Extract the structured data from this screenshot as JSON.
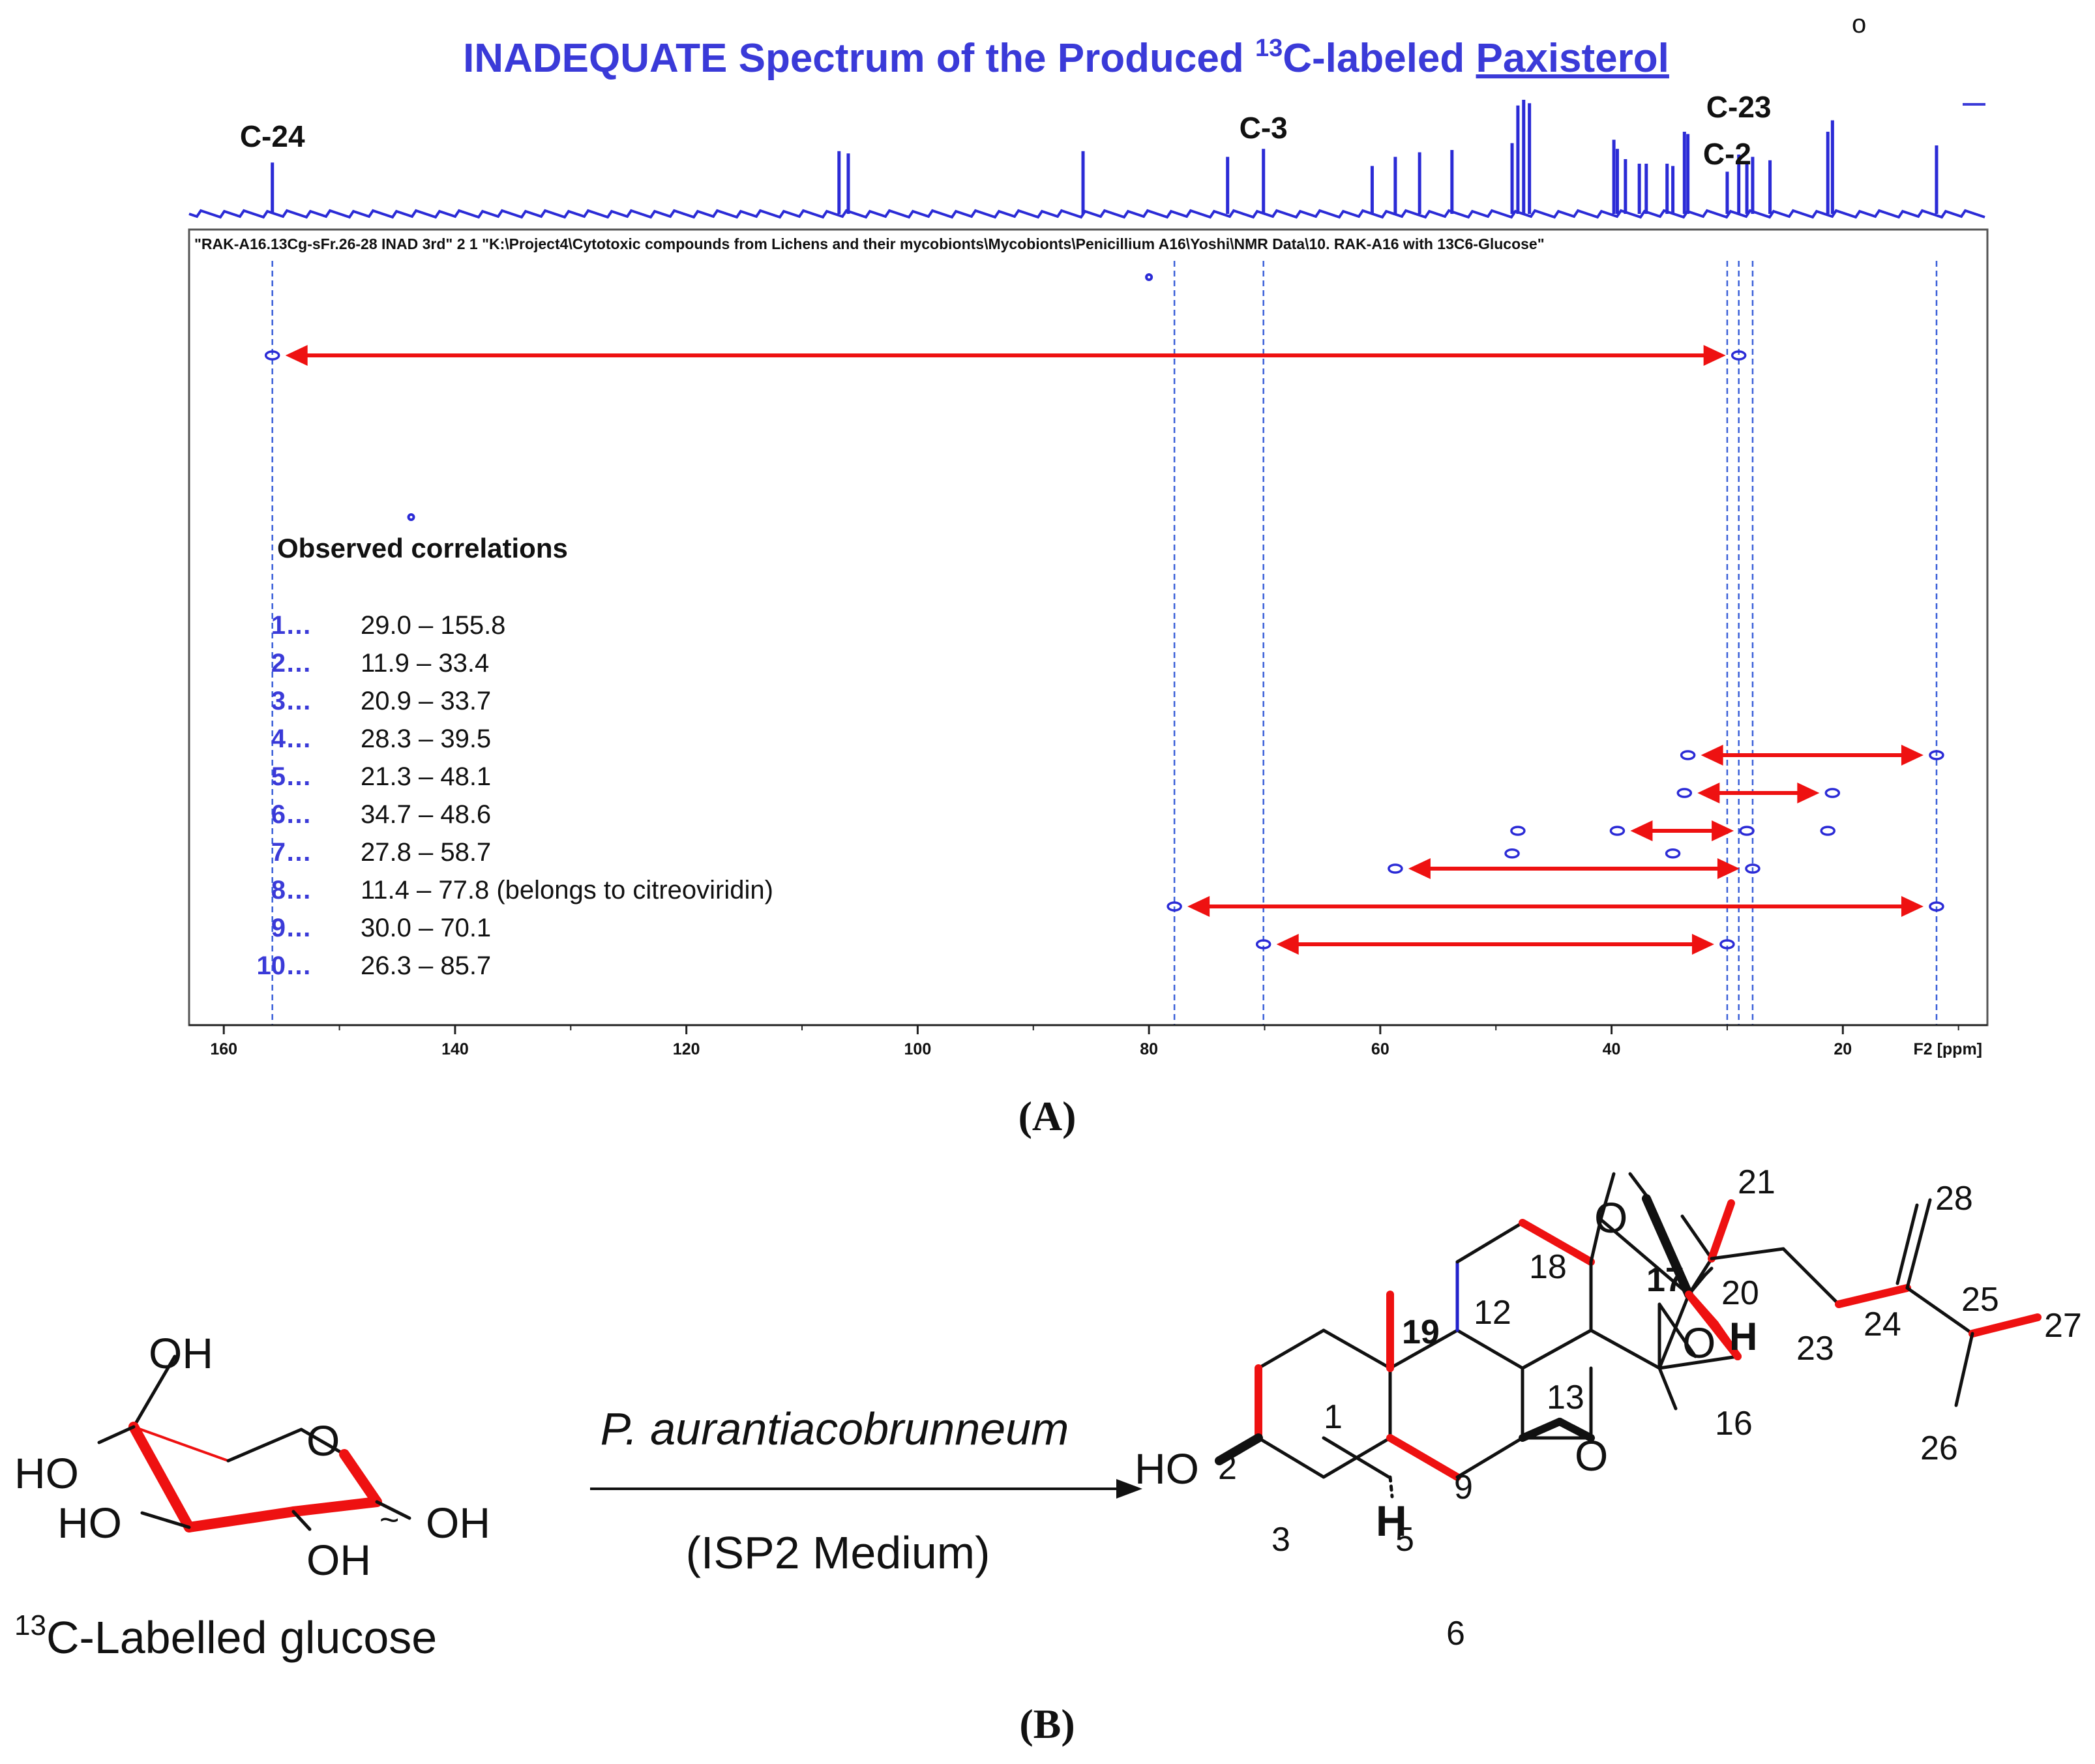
{
  "chart_data": {
    "type": "scatter",
    "title": "INADEQUATE Spectrum of the Produced",
    "title_isotope": "13",
    "title_rest": "C-labeled",
    "title_compound": "Paxisterol",
    "corner_mark": "o",
    "file_header": "\"RAK-A16.13Cg-sFr.26-28 INAD 3rd\"  2  1  \"K:\\Project4\\Cytotoxic compounds from Lichens and their mycobionts\\Mycobionts\\Penicillium A16\\Yoshi\\NMR Data\\10. RAK-A16 with 13C6-Glucose\"",
    "xlabel": "F2 [ppm]",
    "xlim": [
      163,
      7.5
    ],
    "x_ticks": [
      160,
      140,
      120,
      100,
      80,
      60,
      40,
      20
    ],
    "x_tick_labels": [
      "160",
      "140",
      "120",
      "100",
      "80",
      "60",
      "40",
      "20"
    ],
    "peak_labels": [
      {
        "label": "C-24",
        "ppm": 155.8
      },
      {
        "label": "C-3",
        "ppm": 70.1
      },
      {
        "label": "C-23",
        "ppm": 29.0
      },
      {
        "label": "C-2",
        "ppm": 30.0
      }
    ],
    "spectrum_1d": [
      {
        "ppm": 155.8,
        "h": 0.45
      },
      {
        "ppm": 106.8,
        "h": 0.55
      },
      {
        "ppm": 106.0,
        "h": 0.53
      },
      {
        "ppm": 85.7,
        "h": 0.55
      },
      {
        "ppm": 73.2,
        "h": 0.5
      },
      {
        "ppm": 70.1,
        "h": 0.57
      },
      {
        "ppm": 60.7,
        "h": 0.42
      },
      {
        "ppm": 58.7,
        "h": 0.5
      },
      {
        "ppm": 56.6,
        "h": 0.54
      },
      {
        "ppm": 53.8,
        "h": 0.56
      },
      {
        "ppm": 48.6,
        "h": 0.62
      },
      {
        "ppm": 48.1,
        "h": 0.95
      },
      {
        "ppm": 47.6,
        "h": 1.0
      },
      {
        "ppm": 47.1,
        "h": 0.97
      },
      {
        "ppm": 39.8,
        "h": 0.65
      },
      {
        "ppm": 39.5,
        "h": 0.57
      },
      {
        "ppm": 38.8,
        "h": 0.48
      },
      {
        "ppm": 37.6,
        "h": 0.44
      },
      {
        "ppm": 37.0,
        "h": 0.44
      },
      {
        "ppm": 35.2,
        "h": 0.44
      },
      {
        "ppm": 34.7,
        "h": 0.42
      },
      {
        "ppm": 33.7,
        "h": 0.72
      },
      {
        "ppm": 33.4,
        "h": 0.7
      },
      {
        "ppm": 30.0,
        "h": 0.37
      },
      {
        "ppm": 29.0,
        "h": 0.52
      },
      {
        "ppm": 28.3,
        "h": 0.46
      },
      {
        "ppm": 27.8,
        "h": 0.5
      },
      {
        "ppm": 26.3,
        "h": 0.47
      },
      {
        "ppm": 21.3,
        "h": 0.72
      },
      {
        "ppm": 20.9,
        "h": 0.82
      },
      {
        "ppm": 11.9,
        "h": 0.6
      }
    ],
    "guide_lines_ppm": [
      155.8,
      77.8,
      70.1,
      30.0,
      29.0,
      27.8,
      11.9
    ],
    "cross_peaks": [
      {
        "x": 155.8,
        "row": 1
      },
      {
        "x": 29.0,
        "row": 1
      },
      {
        "x": 33.4,
        "row": 2
      },
      {
        "x": 11.9,
        "row": 2
      },
      {
        "x": 33.7,
        "row": 3
      },
      {
        "x": 20.9,
        "row": 3
      },
      {
        "x": 39.5,
        "row": 4
      },
      {
        "x": 28.3,
        "row": 4
      },
      {
        "x": 48.1,
        "row": 4
      },
      {
        "x": 21.3,
        "row": 4
      },
      {
        "x": 58.7,
        "row": 5
      },
      {
        "x": 27.8,
        "row": 5
      },
      {
        "x": 48.6,
        "row": 4.6
      },
      {
        "x": 34.7,
        "row": 4.6
      },
      {
        "x": 77.8,
        "row": 6
      },
      {
        "x": 11.9,
        "row": 6
      },
      {
        "x": 70.1,
        "row": 7
      },
      {
        "x": 30.0,
        "row": 7
      },
      {
        "x": 143.8,
        "row": 0
      },
      {
        "x": 80.0,
        "row": -1
      }
    ],
    "correlation_arrows": [
      {
        "from": 155.8,
        "to": 29.0,
        "row": 1
      },
      {
        "from": 33.4,
        "to": 11.9,
        "row": 2
      },
      {
        "from": 33.7,
        "to": 20.9,
        "row": 3
      },
      {
        "from": 39.5,
        "to": 28.3,
        "row": 4
      },
      {
        "from": 58.7,
        "to": 27.8,
        "row": 5
      },
      {
        "from": 77.8,
        "to": 11.9,
        "row": 6
      },
      {
        "from": 70.1,
        "to": 30.0,
        "row": 7
      }
    ],
    "correlations_heading": "Observed correlations",
    "correlations": [
      {
        "num": "1",
        "text": "29.0 – 155.8",
        "a": 29.0,
        "b": 155.8
      },
      {
        "num": "2",
        "text": "11.9 – 33.4",
        "a": 11.9,
        "b": 33.4
      },
      {
        "num": "3",
        "text": "20.9 – 33.7",
        "a": 20.9,
        "b": 33.7
      },
      {
        "num": "4",
        "text": "28.3 – 39.5",
        "a": 28.3,
        "b": 39.5
      },
      {
        "num": "5",
        "text": "21.3 – 48.1",
        "a": 21.3,
        "b": 48.1
      },
      {
        "num": "6",
        "text": "34.7 – 48.6",
        "a": 34.7,
        "b": 48.6
      },
      {
        "num": "7",
        "text": "27.8 – 58.7",
        "a": 27.8,
        "b": 58.7
      },
      {
        "num": "8",
        "text": "11.4 – 77.8 (belongs to citreoviridin)",
        "a": 11.4,
        "b": 77.8
      },
      {
        "num": "9",
        "text": "30.0 – 70.1",
        "a": 30.0,
        "b": 70.1
      },
      {
        "num": "10",
        "text": "26.3 – 85.7",
        "a": 26.3,
        "b": 85.7
      }
    ],
    "colors": {
      "spectrum": "#2b2bd6",
      "arrow": "#ee1111",
      "guide": "#3a5fd8",
      "title": "#3a3ad8"
    }
  },
  "panel_labels": {
    "a": "(A)",
    "b": "(B)"
  },
  "scheme": {
    "left_compound": {
      "label_sup": "13",
      "label": "C-Labelled glucose",
      "groups": [
        "OH",
        "HO",
        "HO",
        "OH",
        "O",
        "OH",
        "~"
      ]
    },
    "organism": "P. aurantiacobrunneum",
    "medium": "(ISP2 Medium)",
    "product_labels": {
      "numbers": [
        "1",
        "2",
        "3",
        "5",
        "6",
        "9",
        "12",
        "13",
        "16",
        "18",
        "20",
        "21",
        "23",
        "24",
        "25",
        "26",
        "27",
        "28"
      ],
      "bold_numbers": [
        "17",
        "19"
      ],
      "atoms": [
        "O",
        "O",
        "O",
        "HO",
        "H",
        "H"
      ]
    }
  }
}
